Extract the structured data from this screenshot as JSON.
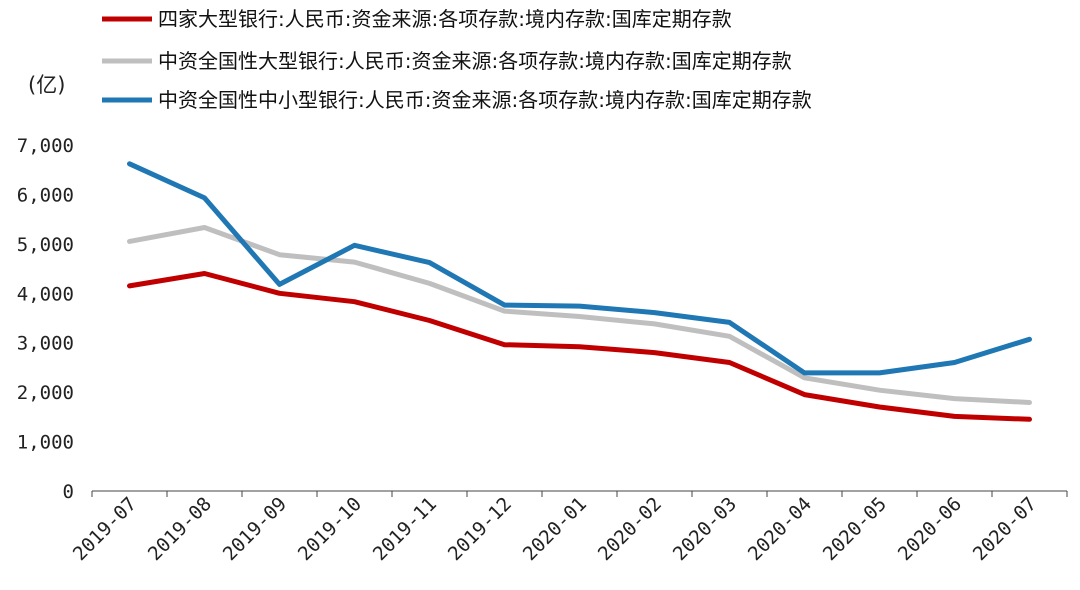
{
  "chart_data": {
    "type": "line",
    "unit_label": "(亿)",
    "categories": [
      "2019-07",
      "2019-08",
      "2019-09",
      "2019-10",
      "2019-11",
      "2019-12",
      "2020-01",
      "2020-02",
      "2020-03",
      "2020-04",
      "2020-05",
      "2020-06",
      "2020-07"
    ],
    "y_ticks": [
      "0",
      "1,000",
      "2,000",
      "3,000",
      "4,000",
      "5,000",
      "6,000",
      "7,000"
    ],
    "ylim": [
      0,
      7000
    ],
    "legend_position": "top",
    "grid": false,
    "series": [
      {
        "name": "四家大型银行:人民币:资金来源:各项存款:境内存款:国库定期存款",
        "color": "#c00000",
        "values": [
          4150,
          4400,
          4000,
          3830,
          3450,
          2960,
          2920,
          2800,
          2600,
          1950,
          1700,
          1510,
          1450
        ]
      },
      {
        "name": "中资全国性大型银行:人民币:资金来源:各项存款:境内存款:国库定期存款",
        "color": "#bfbfbf",
        "values": [
          5050,
          5330,
          4780,
          4630,
          4200,
          3640,
          3530,
          3380,
          3130,
          2290,
          2040,
          1870,
          1790
        ]
      },
      {
        "name": "中资全国性中小型银行:人民币:资金来源:各项存款:境内存款:国库定期存款",
        "color": "#1f77b4",
        "values": [
          6620,
          5930,
          4180,
          4970,
          4620,
          3760,
          3740,
          3610,
          3410,
          2390,
          2390,
          2600,
          3070
        ]
      }
    ]
  }
}
